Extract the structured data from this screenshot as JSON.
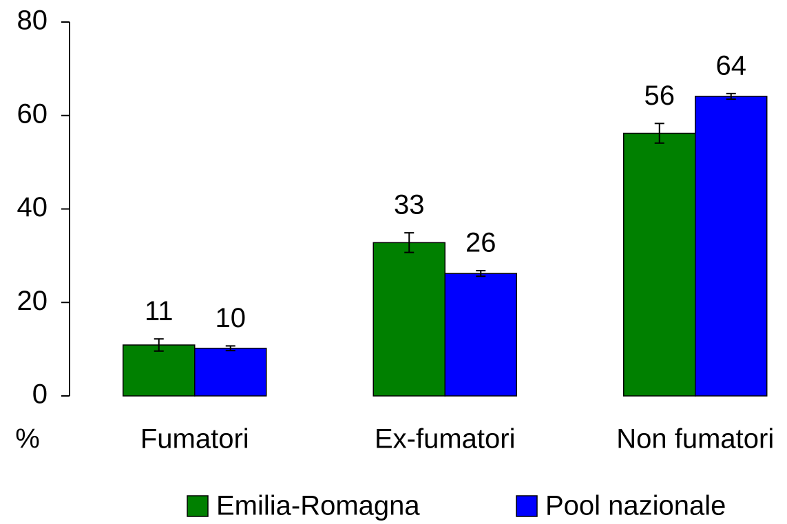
{
  "chart_data": {
    "type": "bar",
    "y_label": "%",
    "categories": [
      "Fumatori",
      "Ex-fumatori",
      "Non fumatori"
    ],
    "series": [
      {
        "name": "Emilia-Romagna",
        "color": "#008000",
        "values": [
          10.9,
          32.8,
          56.2
        ],
        "value_labels": [
          "11",
          "33",
          "56"
        ],
        "error": [
          1.3,
          2.1,
          2.1
        ]
      },
      {
        "name": "Pool nazionale",
        "color": "#0000ff",
        "values": [
          10.2,
          26.2,
          64.1
        ],
        "value_labels": [
          "10",
          "26",
          "64"
        ],
        "error": [
          0.5,
          0.6,
          0.6
        ]
      }
    ],
    "ylim": [
      0,
      80
    ],
    "yticks": [
      0,
      20,
      40,
      60,
      80
    ],
    "grid": false,
    "legend": "bottom"
  }
}
